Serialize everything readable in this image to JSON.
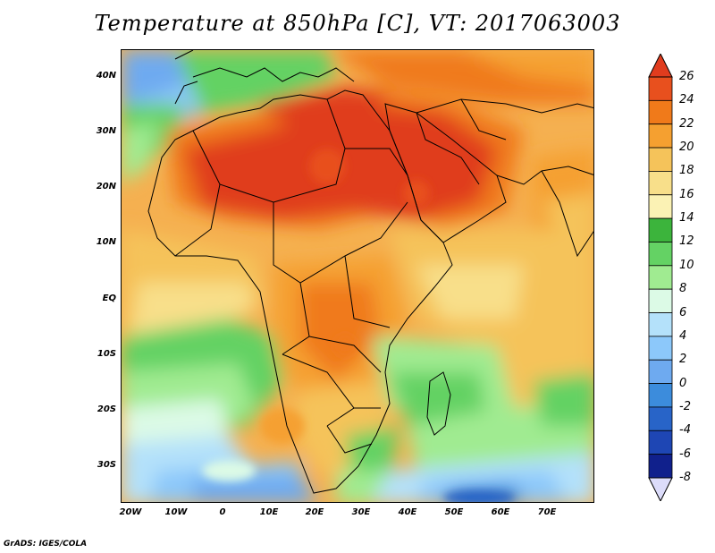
{
  "title": "Temperature at 850hPa [C], VT: 2017063003",
  "credit": "GrADS: IGES/COLA",
  "map": {
    "lat_labels": [
      "40N",
      "30N",
      "20N",
      "10N",
      "EQ",
      "10S",
      "20S",
      "30S"
    ],
    "lon_labels": [
      "20W",
      "10W",
      "0",
      "10E",
      "20E",
      "30E",
      "40E",
      "50E",
      "60E",
      "70E"
    ]
  },
  "colorbar": {
    "labels": [
      "26",
      "24",
      "22",
      "20",
      "18",
      "16",
      "14",
      "12",
      "10",
      "8",
      "6",
      "4",
      "2",
      "0",
      "-2",
      "-4",
      "-6",
      "-8"
    ],
    "colors": [
      "#e03c1e",
      "#e8501e",
      "#f07a1a",
      "#f5a030",
      "#f5c35a",
      "#f8df8a",
      "#fbf2b4",
      "#3cb43c",
      "#64d264",
      "#a0eb91",
      "#dcfae6",
      "#b4e1fa",
      "#8cc8fa",
      "#6eaaf0",
      "#3c8cdc",
      "#2864c8",
      "#1e46b4",
      "#10208c",
      "#140a78"
    ]
  },
  "icons": [
    "arrow-up-triangle-icon",
    "arrow-down-triangle-icon"
  ]
}
